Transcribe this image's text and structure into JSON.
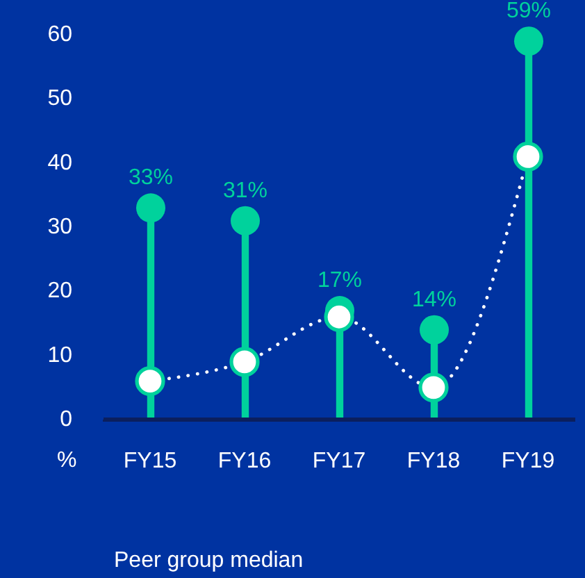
{
  "chart_data": {
    "type": "lollipop",
    "ylabel": "%",
    "categories": [
      "FY15",
      "FY16",
      "FY17",
      "FY18",
      "FY19"
    ],
    "series": [
      {
        "color": "#00d29c",
        "values": [
          33,
          31,
          17,
          14,
          59
        ],
        "value_labels": [
          "33%",
          "31%",
          "17%",
          "14%",
          "59%"
        ]
      },
      {
        "name": "Peer group median",
        "type": "line",
        "color": "#ffffff",
        "values": [
          6,
          9,
          16,
          5,
          41
        ],
        "line_style": "dotted",
        "marker": "circle"
      }
    ],
    "ylim": [
      0,
      60
    ],
    "yticks": [
      0,
      10,
      20,
      30,
      40,
      50,
      60
    ],
    "legend": "bottom left"
  }
}
